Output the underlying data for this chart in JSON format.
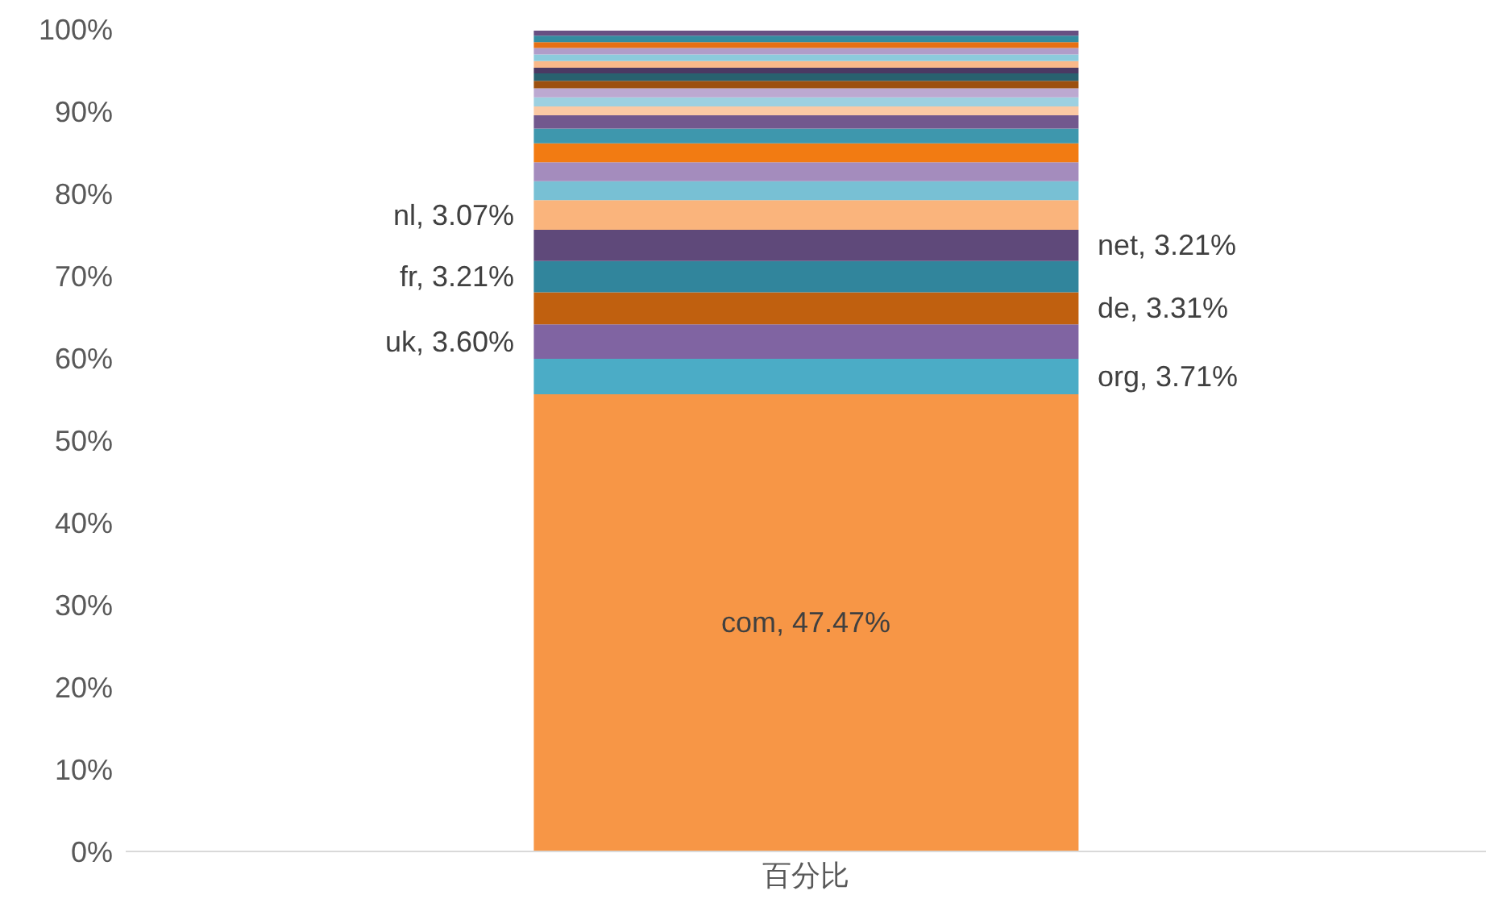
{
  "chart_data": {
    "type": "bar",
    "stacked": true,
    "categories": [
      "百分比"
    ],
    "ylim": [
      0,
      100
    ],
    "yticks": [
      {
        "value": 0,
        "label": "0%"
      },
      {
        "value": 10,
        "label": "10%"
      },
      {
        "value": 20,
        "label": "20%"
      },
      {
        "value": 30,
        "label": "30%"
      },
      {
        "value": 40,
        "label": "40%"
      },
      {
        "value": 50,
        "label": "50%"
      },
      {
        "value": 60,
        "label": "60%"
      },
      {
        "value": 70,
        "label": "70%"
      },
      {
        "value": 80,
        "label": "80%"
      },
      {
        "value": 90,
        "label": "90%"
      },
      {
        "value": 100,
        "label": "100%"
      }
    ],
    "grid": false,
    "legend": false,
    "annotations": [
      "com, 47.47%",
      "org, 3.71%",
      "uk, 3.60%",
      "de, 3.31%",
      "fr, 3.21%",
      "net, 3.21%",
      "nl, 3.07%"
    ],
    "series": [
      {
        "color": "#f79646",
        "values": [
          55.6
        ]
      },
      {
        "color": "#4bacc6",
        "values": [
          4.3
        ]
      },
      {
        "color": "#8064a2",
        "values": [
          4.2
        ]
      },
      {
        "color": "#c0600f",
        "values": [
          3.9
        ]
      },
      {
        "color": "#31859c",
        "values": [
          3.8
        ]
      },
      {
        "color": "#5f497a",
        "values": [
          3.8
        ]
      },
      {
        "color": "#fab47c",
        "values": [
          3.6
        ]
      },
      {
        "color": "#78c0d4",
        "values": [
          2.3
        ]
      },
      {
        "color": "#a48cbd",
        "values": [
          2.3
        ]
      },
      {
        "color": "#f27b12",
        "values": [
          2.3
        ]
      },
      {
        "color": "#3e97ad",
        "values": [
          1.8
        ]
      },
      {
        "color": "#72588e",
        "values": [
          1.6
        ]
      },
      {
        "color": "#fbc9a4",
        "values": [
          1.1
        ]
      },
      {
        "color": "#9dd0e0",
        "values": [
          1.1
        ]
      },
      {
        "color": "#bca9d1",
        "values": [
          1.1
        ]
      },
      {
        "color": "#9c500f",
        "values": [
          0.9
        ]
      },
      {
        "color": "#28616f",
        "values": [
          0.9
        ]
      },
      {
        "color": "#4a3963",
        "values": [
          0.7
        ]
      },
      {
        "color": "#f9b98a",
        "values": [
          0.8
        ]
      },
      {
        "color": "#8ccbdc",
        "values": [
          0.8
        ]
      },
      {
        "color": "#b09dc9",
        "values": [
          0.8
        ]
      },
      {
        "color": "#e67014",
        "values": [
          0.7
        ]
      },
      {
        "color": "#348ca0",
        "values": [
          0.8
        ]
      },
      {
        "color": "#674f82",
        "values": [
          0.6
        ]
      }
    ]
  }
}
